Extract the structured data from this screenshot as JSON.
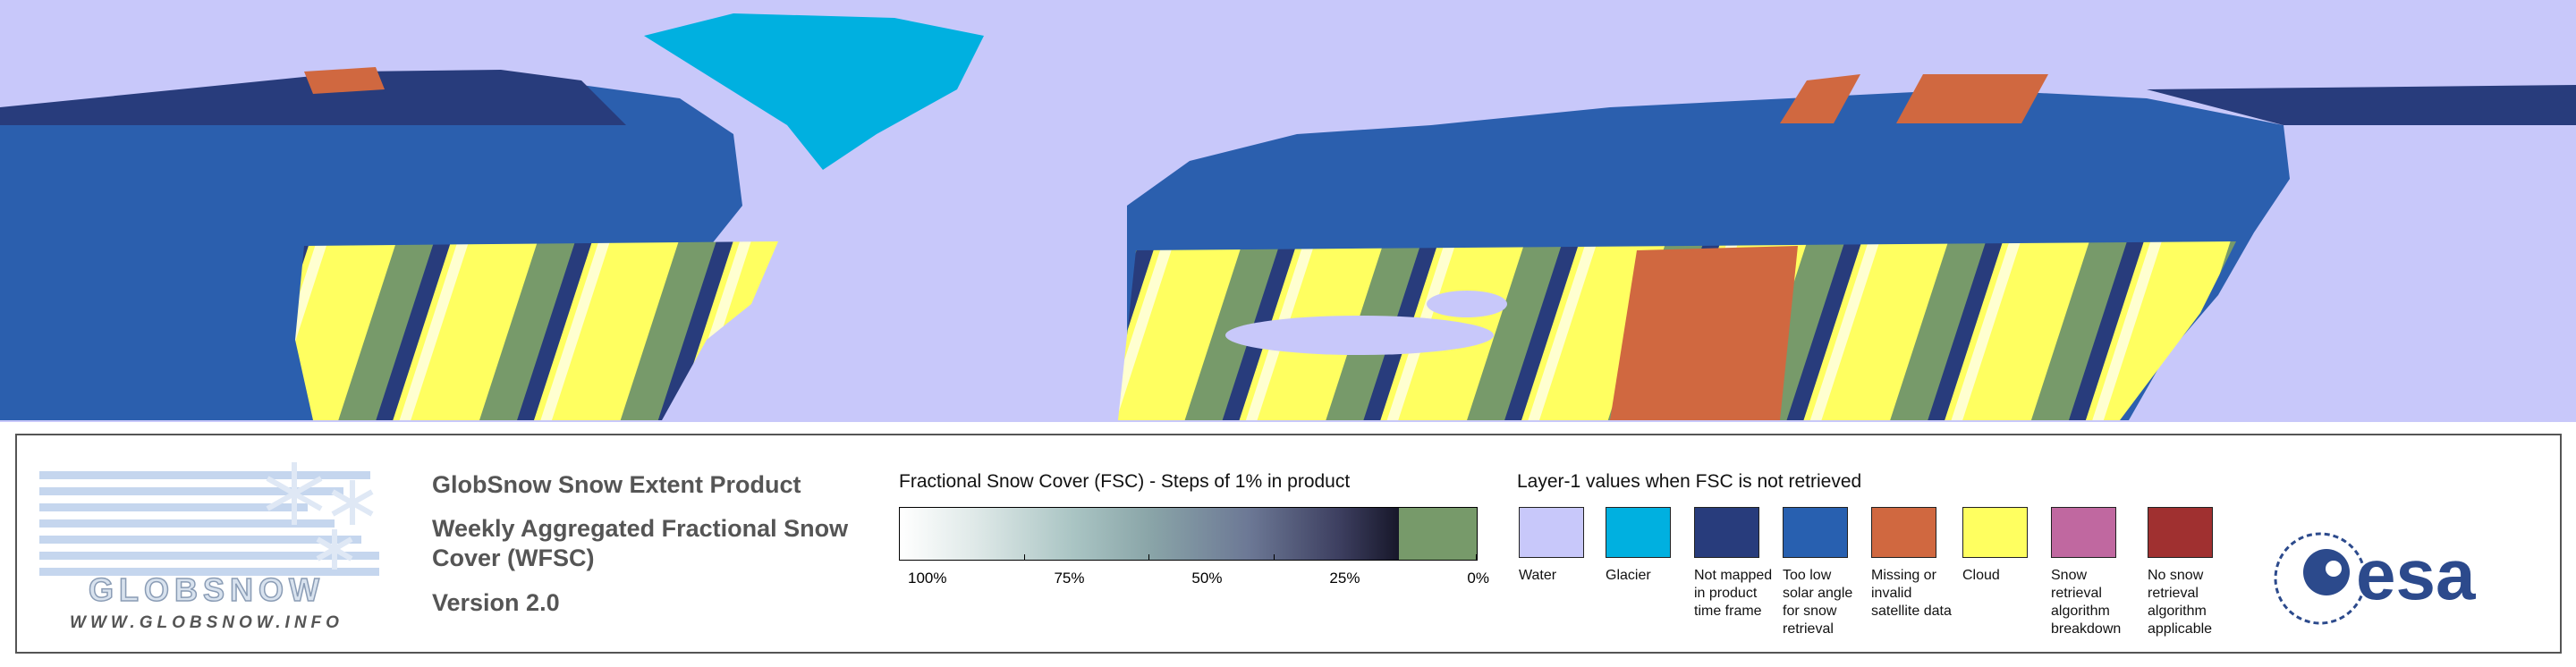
{
  "logo": {
    "name": "GLOBSNOW",
    "url": "WWW.GLOBSNOW.INFO"
  },
  "product": {
    "title": "GlobSnow Snow Extent Product",
    "subtitle": "Weekly Aggregated Fractional Snow Cover (WFSC)",
    "version": "Version 2.0"
  },
  "fsc_legend": {
    "title": "Fractional Snow Cover (FSC) - Steps of 1% in product",
    "ticks": [
      "100%",
      "75%",
      "50%",
      "25%",
      "0%"
    ]
  },
  "layer1_legend": {
    "title": "Layer-1 values when FSC is not retrieved",
    "items": [
      {
        "label": "Water",
        "color": "#c8c8fa"
      },
      {
        "label": "Glacier",
        "color": "#00b0e0"
      },
      {
        "label": "Not mapped in product time frame",
        "color": "#283c7c"
      },
      {
        "label": "Too low solar angle for snow retrieval",
        "color": "#2860b0"
      },
      {
        "label": "Missing or invalid satellite data",
        "color": "#d06840"
      },
      {
        "label": "Cloud",
        "color": "#ffff60"
      },
      {
        "label": "Snow retrieval algorithm breakdown",
        "color": "#c068a0"
      },
      {
        "label": "No snow retrieval algorithm applicable",
        "color": "#a03030"
      }
    ]
  },
  "agency": "esa"
}
